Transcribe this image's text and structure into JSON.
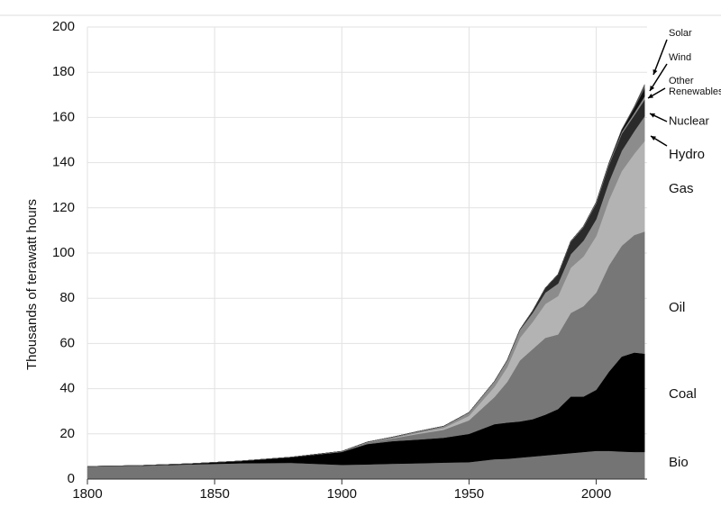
{
  "chart_data": {
    "type": "stacked_area",
    "ylabel": "Thousands of terawatt hours",
    "x": [
      1800,
      1820,
      1840,
      1860,
      1880,
      1900,
      1910,
      1920,
      1930,
      1940,
      1950,
      1960,
      1965,
      1970,
      1975,
      1980,
      1985,
      1990,
      1995,
      2000,
      2005,
      2010,
      2015,
      2019
    ],
    "series": [
      {
        "name": "Bio",
        "color": "#747474",
        "values": [
          5.6,
          5.9,
          6.5,
          7,
          7.2,
          6.3,
          6.5,
          6.8,
          7,
          7.3,
          7.5,
          8.8,
          9,
          9.5,
          10,
          10.5,
          11,
          11.5,
          12,
          12.5,
          12.5,
          12.2,
          12,
          12
        ]
      },
      {
        "name": "Coal",
        "color": "#000000",
        "values": [
          0,
          0.1,
          0.3,
          1,
          2.5,
          5.7,
          9,
          10,
          10.5,
          11,
          12.5,
          15.5,
          16,
          16,
          16.5,
          18,
          20,
          25,
          24.5,
          27,
          35,
          42,
          44,
          43.5
        ]
      },
      {
        "name": "Oil",
        "color": "#777777",
        "values": [
          0,
          0,
          0,
          0,
          0,
          0.2,
          0.6,
          1.2,
          2.5,
          3.5,
          6,
          12,
          18,
          27,
          31,
          34,
          33,
          37,
          40,
          43,
          47,
          49,
          52,
          54
        ]
      },
      {
        "name": "Gas",
        "color": "#b3b3b3",
        "values": [
          0,
          0,
          0,
          0,
          0,
          0,
          0.1,
          0.2,
          0.5,
          0.8,
          2,
          4.5,
          6.5,
          10,
          12,
          15,
          17,
          20,
          22,
          25,
          29,
          33,
          36,
          40
        ]
      },
      {
        "name": "Hydro",
        "color": "#8c8c8c",
        "values": [
          0,
          0,
          0,
          0,
          0,
          0.1,
          0.2,
          0.4,
          0.6,
          0.8,
          1.5,
          2.5,
          3,
          3.5,
          4,
          5,
          5.5,
          6,
          7,
          7.5,
          8,
          9,
          10,
          11
        ]
      },
      {
        "name": "Nuclear",
        "color": "#2a2a2a",
        "values": [
          0,
          0,
          0,
          0,
          0,
          0,
          0,
          0,
          0,
          0,
          0,
          0,
          0.1,
          0.2,
          1,
          2,
          4,
          5.5,
          6,
          7,
          7.5,
          7.5,
          7,
          7.3
        ]
      },
      {
        "name": "Other Renewables",
        "color": "#8a8a8a",
        "values": [
          0,
          0,
          0,
          0,
          0,
          0,
          0,
          0,
          0,
          0,
          0,
          0,
          0,
          0,
          0,
          0.1,
          0.2,
          0.3,
          0.4,
          0.5,
          0.6,
          0.8,
          1.1,
          1.5
        ]
      },
      {
        "name": "Wind",
        "color": "#111111",
        "values": [
          0,
          0,
          0,
          0,
          0,
          0,
          0,
          0,
          0,
          0,
          0,
          0,
          0,
          0,
          0,
          0,
          0,
          0,
          0.02,
          0.08,
          0.3,
          1,
          2.2,
          3.5
        ]
      },
      {
        "name": "Solar",
        "color": "#555555",
        "values": [
          0,
          0,
          0,
          0,
          0,
          0,
          0,
          0,
          0,
          0,
          0,
          0,
          0,
          0,
          0,
          0,
          0,
          0,
          0,
          0,
          0,
          0.1,
          0.7,
          1.8
        ]
      }
    ],
    "xlim": [
      1800,
      2020
    ],
    "xticks": [
      1800,
      1850,
      1900,
      1950,
      2000
    ],
    "ylim": [
      0,
      200
    ],
    "yticks": [
      0,
      20,
      40,
      60,
      80,
      100,
      120,
      140,
      160,
      180,
      200
    ],
    "grid": true
  }
}
